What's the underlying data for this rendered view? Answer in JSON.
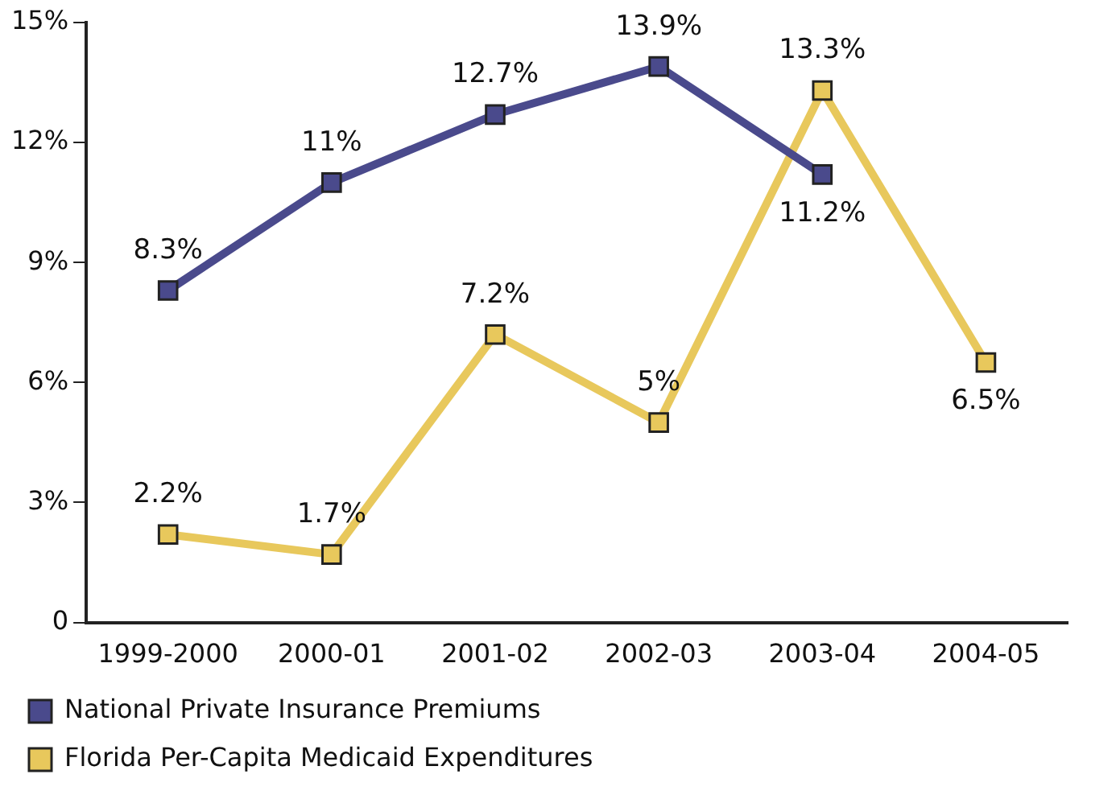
{
  "chart_data": {
    "type": "line",
    "categories": [
      "1999-2000",
      "2000-01",
      "2001-02",
      "2002-03",
      "2003-04",
      "2004-05"
    ],
    "series": [
      {
        "name": "National Private Insurance Premiums",
        "color": "#4a4a8c",
        "values": [
          8.3,
          11,
          12.7,
          13.9,
          11.2,
          null
        ],
        "value_labels": [
          "8.3%",
          "11%",
          "12.7%",
          "13.9%",
          "11.2%",
          null
        ]
      },
      {
        "name": "Florida Per-Capita Medicaid Expenditures",
        "color": "#e8c85c",
        "values": [
          2.2,
          1.7,
          7.2,
          5,
          13.3,
          6.5
        ],
        "value_labels": [
          "2.2%",
          "1.7%",
          "7.2%",
          "5%",
          "13.3%",
          "6.5%"
        ]
      }
    ],
    "ylim": [
      0,
      15
    ],
    "yticks": [
      0,
      {
        "value": 3,
        "label": "3%"
      },
      {
        "value": 6,
        "label": "6%"
      },
      {
        "value": 9,
        "label": "9%"
      },
      {
        "value": 12,
        "label": "12%"
      },
      {
        "value": 15,
        "label": "15%"
      }
    ],
    "grid": false,
    "legend": "bottom left",
    "marker": "square",
    "line_style": "solid"
  }
}
